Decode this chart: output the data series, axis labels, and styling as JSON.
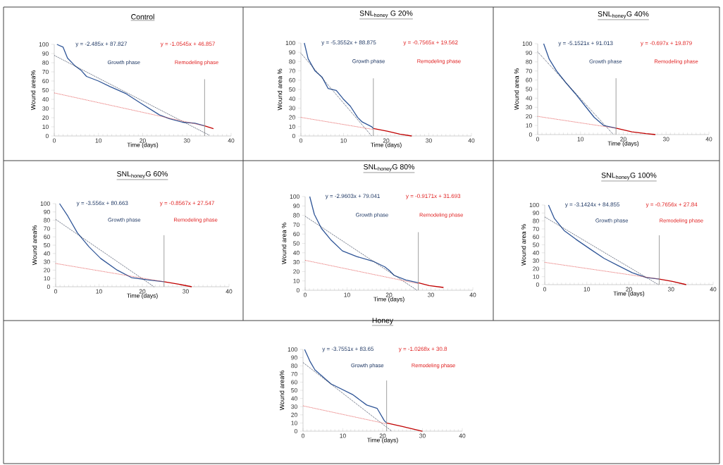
{
  "chart_data": [
    {
      "type": "line",
      "title": "Control",
      "xlabel": "Time (days)",
      "ylabel": "Wound area%",
      "xlim": [
        0,
        40
      ],
      "ylim": [
        0,
        100
      ],
      "xticks": [
        0,
        10,
        20,
        30,
        40
      ],
      "yticks": [
        0,
        10,
        20,
        30,
        40,
        50,
        60,
        70,
        80,
        90,
        100
      ],
      "marker": "none",
      "annotations": [
        "y = -2.485x + 87.827",
        "y = -1.0545x + 46.857",
        "Growth phase",
        "Remodeling phase"
      ],
      "ref_lines": [
        {
          "axis": "x",
          "value": 34
        }
      ],
      "series": [
        {
          "color": "#2f5597",
          "line_style": "solid",
          "x": [
            0.6,
            2,
            3,
            4.6,
            6,
            7.3,
            10,
            12.6,
            16.3,
            19.5,
            23.8,
            26,
            29,
            31.8,
            34
          ],
          "values": [
            100,
            97,
            85,
            77,
            72,
            65,
            60,
            54,
            46,
            36,
            23,
            19,
            15,
            14,
            11
          ]
        },
        {
          "color": "#c00000",
          "line_style": "solid",
          "x": [
            34,
            36
          ],
          "values": [
            11,
            8
          ]
        },
        {
          "color": "#1f2a44",
          "line_style": "dotted",
          "x": [
            0,
            35
          ],
          "values": [
            88,
            1
          ]
        },
        {
          "color": "#e03c3c",
          "line_style": "dotted",
          "x": [
            0,
            34
          ],
          "values": [
            47,
            11
          ]
        }
      ]
    },
    {
      "type": "line",
      "title": "SNL$_{honey}$ G 20%",
      "xlabel": "Time (days)",
      "ylabel": "Wound area %",
      "xlim": [
        0,
        40
      ],
      "ylim": [
        0,
        100
      ],
      "xticks": [
        0,
        10,
        20,
        30,
        40
      ],
      "yticks": [
        0,
        10,
        20,
        30,
        40,
        50,
        60,
        70,
        80,
        90,
        100
      ],
      "marker": "none",
      "annotations": [
        "y = -5.3552x + 88.875",
        "y = -0.7565x + 19.562",
        "Growth phase",
        "Remodeling phase"
      ],
      "ref_lines": [
        {
          "axis": "x",
          "value": 17
        }
      ],
      "series": [
        {
          "color": "#2f5597",
          "line_style": "solid",
          "x": [
            0.8,
            1.7,
            3.3,
            5,
            6.4,
            8.3,
            9.9,
            11.6,
            13.3,
            14.4,
            16.6,
            17
          ],
          "values": [
            100,
            83,
            70,
            63,
            51,
            49,
            40,
            32,
            20,
            15,
            10,
            8
          ]
        },
        {
          "color": "#c00000",
          "line_style": "solid",
          "x": [
            17,
            20.4,
            23.2,
            26
          ],
          "values": [
            8,
            5,
            2,
            0
          ]
        },
        {
          "color": "#1f2a44",
          "line_style": "dotted",
          "x": [
            0,
            16.6
          ],
          "values": [
            89,
            0
          ]
        },
        {
          "color": "#e03c3c",
          "line_style": "dotted",
          "x": [
            0,
            17
          ],
          "values": [
            20,
            7
          ]
        }
      ]
    },
    {
      "type": "line",
      "title": "SNL$_{honey}$G 40%",
      "xlabel": "Time (days)",
      "ylabel": "Wound area %",
      "xlim": [
        0,
        40
      ],
      "ylim": [
        0,
        100
      ],
      "xticks": [
        0,
        10,
        20,
        30,
        40
      ],
      "yticks": [
        0,
        10,
        20,
        30,
        40,
        50,
        60,
        70,
        80,
        90,
        100
      ],
      "marker": "none",
      "annotations": [
        "y = -5.1521x + 91.013",
        "y = -0.697x + 19.879",
        "Growth phase",
        "Remodeling phase"
      ],
      "ref_lines": [
        {
          "axis": "x",
          "value": 18.3
        }
      ],
      "series": [
        {
          "color": "#2f5597",
          "line_style": "solid",
          "x": [
            1.4,
            2.7,
            4.4,
            6.6,
            8.8,
            11,
            13.2,
            15.4,
            18.3
          ],
          "values": [
            100,
            83,
            70,
            57,
            45,
            32,
            19,
            10,
            7
          ]
        },
        {
          "color": "#c00000",
          "line_style": "solid",
          "x": [
            18.3,
            22,
            25.3,
            27.5
          ],
          "values": [
            7,
            3,
            1,
            0
          ]
        },
        {
          "color": "#1f2a44",
          "line_style": "dotted",
          "x": [
            0,
            17.7
          ],
          "values": [
            91,
            0
          ]
        },
        {
          "color": "#e03c3c",
          "line_style": "dotted",
          "x": [
            0,
            18.3
          ],
          "values": [
            20,
            7
          ]
        }
      ]
    },
    {
      "type": "line",
      "title": "SNL$_{honey}$G 60%",
      "xlabel": "Time (days)",
      "ylabel": "Wound area%",
      "xlim": [
        0,
        40
      ],
      "ylim": [
        0,
        100
      ],
      "xticks": [
        0,
        10,
        20,
        30,
        40
      ],
      "yticks": [
        0,
        10,
        20,
        30,
        40,
        50,
        60,
        70,
        80,
        90,
        100
      ],
      "marker": "none",
      "annotations": [
        "y = -3.556x + 80.663",
        "y = -0.8567x + 27.547",
        "Growth phase",
        "Remodeling phase"
      ],
      "ref_lines": [
        {
          "axis": "x",
          "value": 25
        }
      ],
      "series": [
        {
          "color": "#2f5597",
          "line_style": "solid",
          "x": [
            0.9,
            2.8,
            5,
            7.7,
            10.4,
            14.2,
            17.5,
            21.8,
            25
          ],
          "values": [
            100,
            85,
            65,
            48,
            34,
            20,
            11,
            8,
            6
          ]
        },
        {
          "color": "#c00000",
          "line_style": "solid",
          "x": [
            25,
            28.4,
            31.4
          ],
          "values": [
            6,
            3,
            0
          ]
        },
        {
          "color": "#1f2a44",
          "line_style": "dotted",
          "x": [
            0,
            22.7
          ],
          "values": [
            81,
            0
          ]
        },
        {
          "color": "#e03c3c",
          "line_style": "dotted",
          "x": [
            0,
            25
          ],
          "values": [
            28,
            6
          ]
        }
      ]
    },
    {
      "type": "line",
      "title": "SNL$_{honey}$G 80%",
      "xlabel": "Time (days)",
      "ylabel": "Wound area %",
      "xlim": [
        0,
        40
      ],
      "ylim": [
        0,
        100
      ],
      "xticks": [
        0,
        10,
        20,
        30,
        40
      ],
      "yticks": [
        0,
        10,
        20,
        30,
        40,
        50,
        60,
        70,
        80,
        90,
        100
      ],
      "marker": "none",
      "annotations": [
        "y = -2.9603x + 79.041",
        "y = -0.9171x + 31.693",
        "Growth phase",
        "Remodeling phase"
      ],
      "ref_lines": [
        {
          "axis": "x",
          "value": 27
        }
      ],
      "series": [
        {
          "color": "#2f5597",
          "line_style": "solid",
          "x": [
            1.1,
            2.2,
            3.9,
            6.1,
            8.9,
            12.3,
            16.2,
            19,
            20.1,
            21.2,
            24,
            27
          ],
          "values": [
            100,
            81,
            66,
            54,
            42,
            36,
            31,
            25,
            21,
            16,
            11,
            8
          ]
        },
        {
          "color": "#c00000",
          "line_style": "solid",
          "x": [
            27,
            29.6,
            33
          ],
          "values": [
            8,
            5,
            3
          ]
        },
        {
          "color": "#1f2a44",
          "line_style": "dotted",
          "x": [
            0,
            26.7
          ],
          "values": [
            79,
            0
          ]
        },
        {
          "color": "#e03c3c",
          "line_style": "dotted",
          "x": [
            0,
            27
          ],
          "values": [
            32,
            7
          ]
        }
      ]
    },
    {
      "type": "line",
      "title": "SNL$_{honey}$G 100%",
      "xlabel": "Time (days)",
      "ylabel": "Wound area %",
      "xlim": [
        0,
        40
      ],
      "ylim": [
        0,
        100
      ],
      "xticks": [
        0,
        10,
        20,
        30,
        40
      ],
      "yticks": [
        0,
        10,
        20,
        30,
        40,
        50,
        60,
        70,
        80,
        90,
        100
      ],
      "marker": "none",
      "annotations": [
        "y = -3.1424x + 84.855",
        "y = -0.7656x + 27.84",
        "Growth phase",
        "Remodeling phase"
      ],
      "ref_lines": [
        {
          "axis": "x",
          "value": 27.2
        }
      ],
      "series": [
        {
          "color": "#2f5597",
          "line_style": "solid",
          "x": [
            0.9,
            2.3,
            4.6,
            7.4,
            10.7,
            14.1,
            17.4,
            20.8,
            24.1,
            27.2
          ],
          "values": [
            100,
            83,
            68,
            57,
            45,
            33,
            24,
            15,
            9,
            7
          ]
        },
        {
          "color": "#c00000",
          "line_style": "solid",
          "x": [
            27.2,
            30.3,
            33.6
          ],
          "values": [
            7,
            4,
            0
          ]
        },
        {
          "color": "#1f2a44",
          "line_style": "dotted",
          "x": [
            0,
            27
          ],
          "values": [
            85,
            0
          ]
        },
        {
          "color": "#e03c3c",
          "line_style": "dotted",
          "x": [
            0,
            27.2
          ],
          "values": [
            28,
            7
          ]
        }
      ]
    },
    {
      "type": "line",
      "title": "Honey",
      "xlabel": "Time (days)",
      "ylabel": "Wound area%",
      "xlim": [
        0,
        40
      ],
      "ylim": [
        0,
        100
      ],
      "xticks": [
        0,
        10,
        20,
        30,
        40
      ],
      "yticks": [
        0,
        10,
        20,
        30,
        40,
        50,
        60,
        70,
        80,
        90,
        100
      ],
      "marker": "none",
      "annotations": [
        "y = -3.7551x + 83.65",
        "y = -1.0268x + 30.8",
        "Growth phase",
        "Remodeling phase"
      ],
      "ref_lines": [
        {
          "axis": "x",
          "value": 21
        }
      ],
      "series": [
        {
          "color": "#2f5597",
          "line_style": "solid",
          "x": [
            0.4,
            1.8,
            3,
            7,
            12.4,
            16,
            18.6,
            20.4,
            21
          ],
          "values": [
            100,
            85,
            75,
            58,
            45,
            32,
            28,
            13,
            10
          ]
        },
        {
          "color": "#c00000",
          "line_style": "solid",
          "x": [
            21,
            24.8,
            30
          ],
          "values": [
            10,
            6,
            0
          ]
        },
        {
          "color": "#1f2a44",
          "line_style": "dotted",
          "x": [
            0,
            22.3
          ],
          "values": [
            84,
            0
          ]
        },
        {
          "color": "#e03c3c",
          "line_style": "dotted",
          "x": [
            0,
            21
          ],
          "values": [
            31,
            9
          ]
        }
      ]
    }
  ]
}
